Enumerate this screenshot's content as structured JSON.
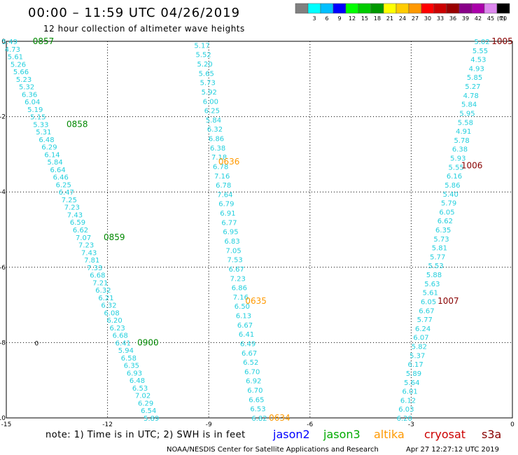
{
  "title": "00:00 – 11:59 UTC 04/26/2019",
  "subtitle": "12 hour collection of altimeter wave heights",
  "colorbar": {
    "unit_label": "(ft)",
    "entries": [
      {
        "label": "",
        "color": "#808080"
      },
      {
        "label": "3",
        "color": "#00ffff"
      },
      {
        "label": "6",
        "color": "#00bfff"
      },
      {
        "label": "9",
        "color": "#0000ff"
      },
      {
        "label": "12",
        "color": "#00ff00"
      },
      {
        "label": "15",
        "color": "#00cc00"
      },
      {
        "label": "18",
        "color": "#009900"
      },
      {
        "label": "21",
        "color": "#ffff00"
      },
      {
        "label": "24",
        "color": "#ffcc00"
      },
      {
        "label": "27",
        "color": "#ff9900"
      },
      {
        "label": "30",
        "color": "#ff0000"
      },
      {
        "label": "33",
        "color": "#cc0000"
      },
      {
        "label": "36",
        "color": "#990000"
      },
      {
        "label": "39",
        "color": "#880088"
      },
      {
        "label": "42",
        "color": "#aa00aa"
      },
      {
        "label": "45",
        "color": "#dd88ee"
      },
      {
        "label": "70",
        "color": "#000000"
      }
    ]
  },
  "note": "note: 1) Time is in UTC; 2) SWH is in feet",
  "legend": [
    {
      "name": "jason2",
      "color": "#0000ff"
    },
    {
      "name": "jason3",
      "color": "#00aa00"
    },
    {
      "name": "altika",
      "color": "#ff9900"
    },
    {
      "name": "cryosat",
      "color": "#cc0000"
    },
    {
      "name": "s3a",
      "color": "#880000"
    }
  ],
  "credit_left": "NOAA/NESDIS Center for Satellite Applications and Research",
  "credit_right": "Apr 27 12:27:12 UTC 2019",
  "chart_data": {
    "type": "scatter",
    "xlim": [
      -15,
      0
    ],
    "ylim": [
      -10,
      0
    ],
    "x_ticks": [
      -15,
      -12,
      -9,
      -6,
      -3,
      0
    ],
    "y_ticks": [
      0,
      -2,
      -4,
      -6,
      -8,
      -10
    ],
    "grid": true,
    "value_color": "#22cfdd",
    "point_marker": {
      "x": -14.1,
      "y": -8.0,
      "label": "0"
    },
    "series": [
      {
        "satellite": "jason3",
        "color": "#008800",
        "start": [
          -14.9,
          0.0
        ],
        "end": [
          -10.7,
          -10.0
        ],
        "values": [
          "5.49",
          "4.73",
          "5.61",
          "5.26",
          "5.66",
          "5.23",
          "5.32",
          "6.36",
          "6.04",
          "5.19",
          "5.15",
          "5.33",
          "5.31",
          "6.48",
          "6.29",
          "6.14",
          "5.84",
          "6.64",
          "6.46",
          "6.25",
          "6.47",
          "7.25",
          "7.23",
          "7.43",
          "6.59",
          "6.62",
          "7.07",
          "7.23",
          "7.43",
          "7.81",
          "7.33",
          "6.68",
          "7.21",
          "6.32",
          "6.21",
          "6.32",
          "6.08",
          "6.20",
          "6.23",
          "6.68",
          "6.41",
          "5.94",
          "6.58",
          "6.35",
          "6.93",
          "6.48",
          "6.53",
          "7.02",
          "6.29",
          "6.54",
          "5.89"
        ],
        "times": [
          {
            "label": "0857",
            "x": -13.9,
            "y": 0.0
          },
          {
            "label": "0858",
            "x": -12.9,
            "y": -2.2
          },
          {
            "label": "0859",
            "x": -11.8,
            "y": -5.2
          },
          {
            "label": "0900",
            "x": -10.8,
            "y": -8.0
          }
        ]
      },
      {
        "satellite": "altika",
        "color": "#ff9900",
        "start": [
          -9.2,
          -0.1
        ],
        "end": [
          -7.5,
          -10.0
        ],
        "values": [
          "5.17",
          "5.52",
          "5.20",
          "5.65",
          "5.73",
          "5.92",
          "6.00",
          "6.25",
          "5.84",
          "6.32",
          "6.86",
          "6.38",
          "7.18",
          "6.78",
          "7.16",
          "6.78",
          "7.64",
          "6.79",
          "6.91",
          "6.77",
          "6.95",
          "6.83",
          "7.05",
          "7.53",
          "6.67",
          "7.23",
          "6.86",
          "7.16",
          "6.50",
          "6.13",
          "6.67",
          "6.41",
          "6.49",
          "6.67",
          "6.52",
          "6.70",
          "6.92",
          "6.70",
          "6.65",
          "6.53",
          "6.82"
        ],
        "times": [
          {
            "label": "0636",
            "x": -8.4,
            "y": -3.2
          },
          {
            "label": "0635",
            "x": -7.6,
            "y": -6.9
          },
          {
            "label": "0634",
            "x": -6.9,
            "y": -10.0
          }
        ]
      },
      {
        "satellite": "s3a",
        "color": "#880000",
        "start": [
          -0.9,
          -0.0
        ],
        "end": [
          -3.2,
          -10.0
        ],
        "values": [
          "5.02",
          "5.55",
          "4.53",
          "4.93",
          "5.85",
          "5.27",
          "4.78",
          "5.84",
          "5.95",
          "5.58",
          "4.91",
          "5.78",
          "6.38",
          "5.93",
          "5.55",
          "6.16",
          "5.86",
          "5.40",
          "5.79",
          "6.05",
          "6.62",
          "6.35",
          "5.73",
          "5.81",
          "5.77",
          "5.53",
          "5.88",
          "5.63",
          "5.61",
          "6.05",
          "6.67",
          "5.77",
          "6.24",
          "6.07",
          "5.82",
          "5.37",
          "6.17",
          "5.89",
          "5.64",
          "6.01",
          "6.12",
          "6.03",
          "6.20"
        ],
        "times": [
          {
            "label": "1005",
            "x": -0.3,
            "y": 0.0
          },
          {
            "label": "1006",
            "x": -1.2,
            "y": -3.3
          },
          {
            "label": "1007",
            "x": -1.9,
            "y": -6.9
          }
        ]
      }
    ]
  }
}
